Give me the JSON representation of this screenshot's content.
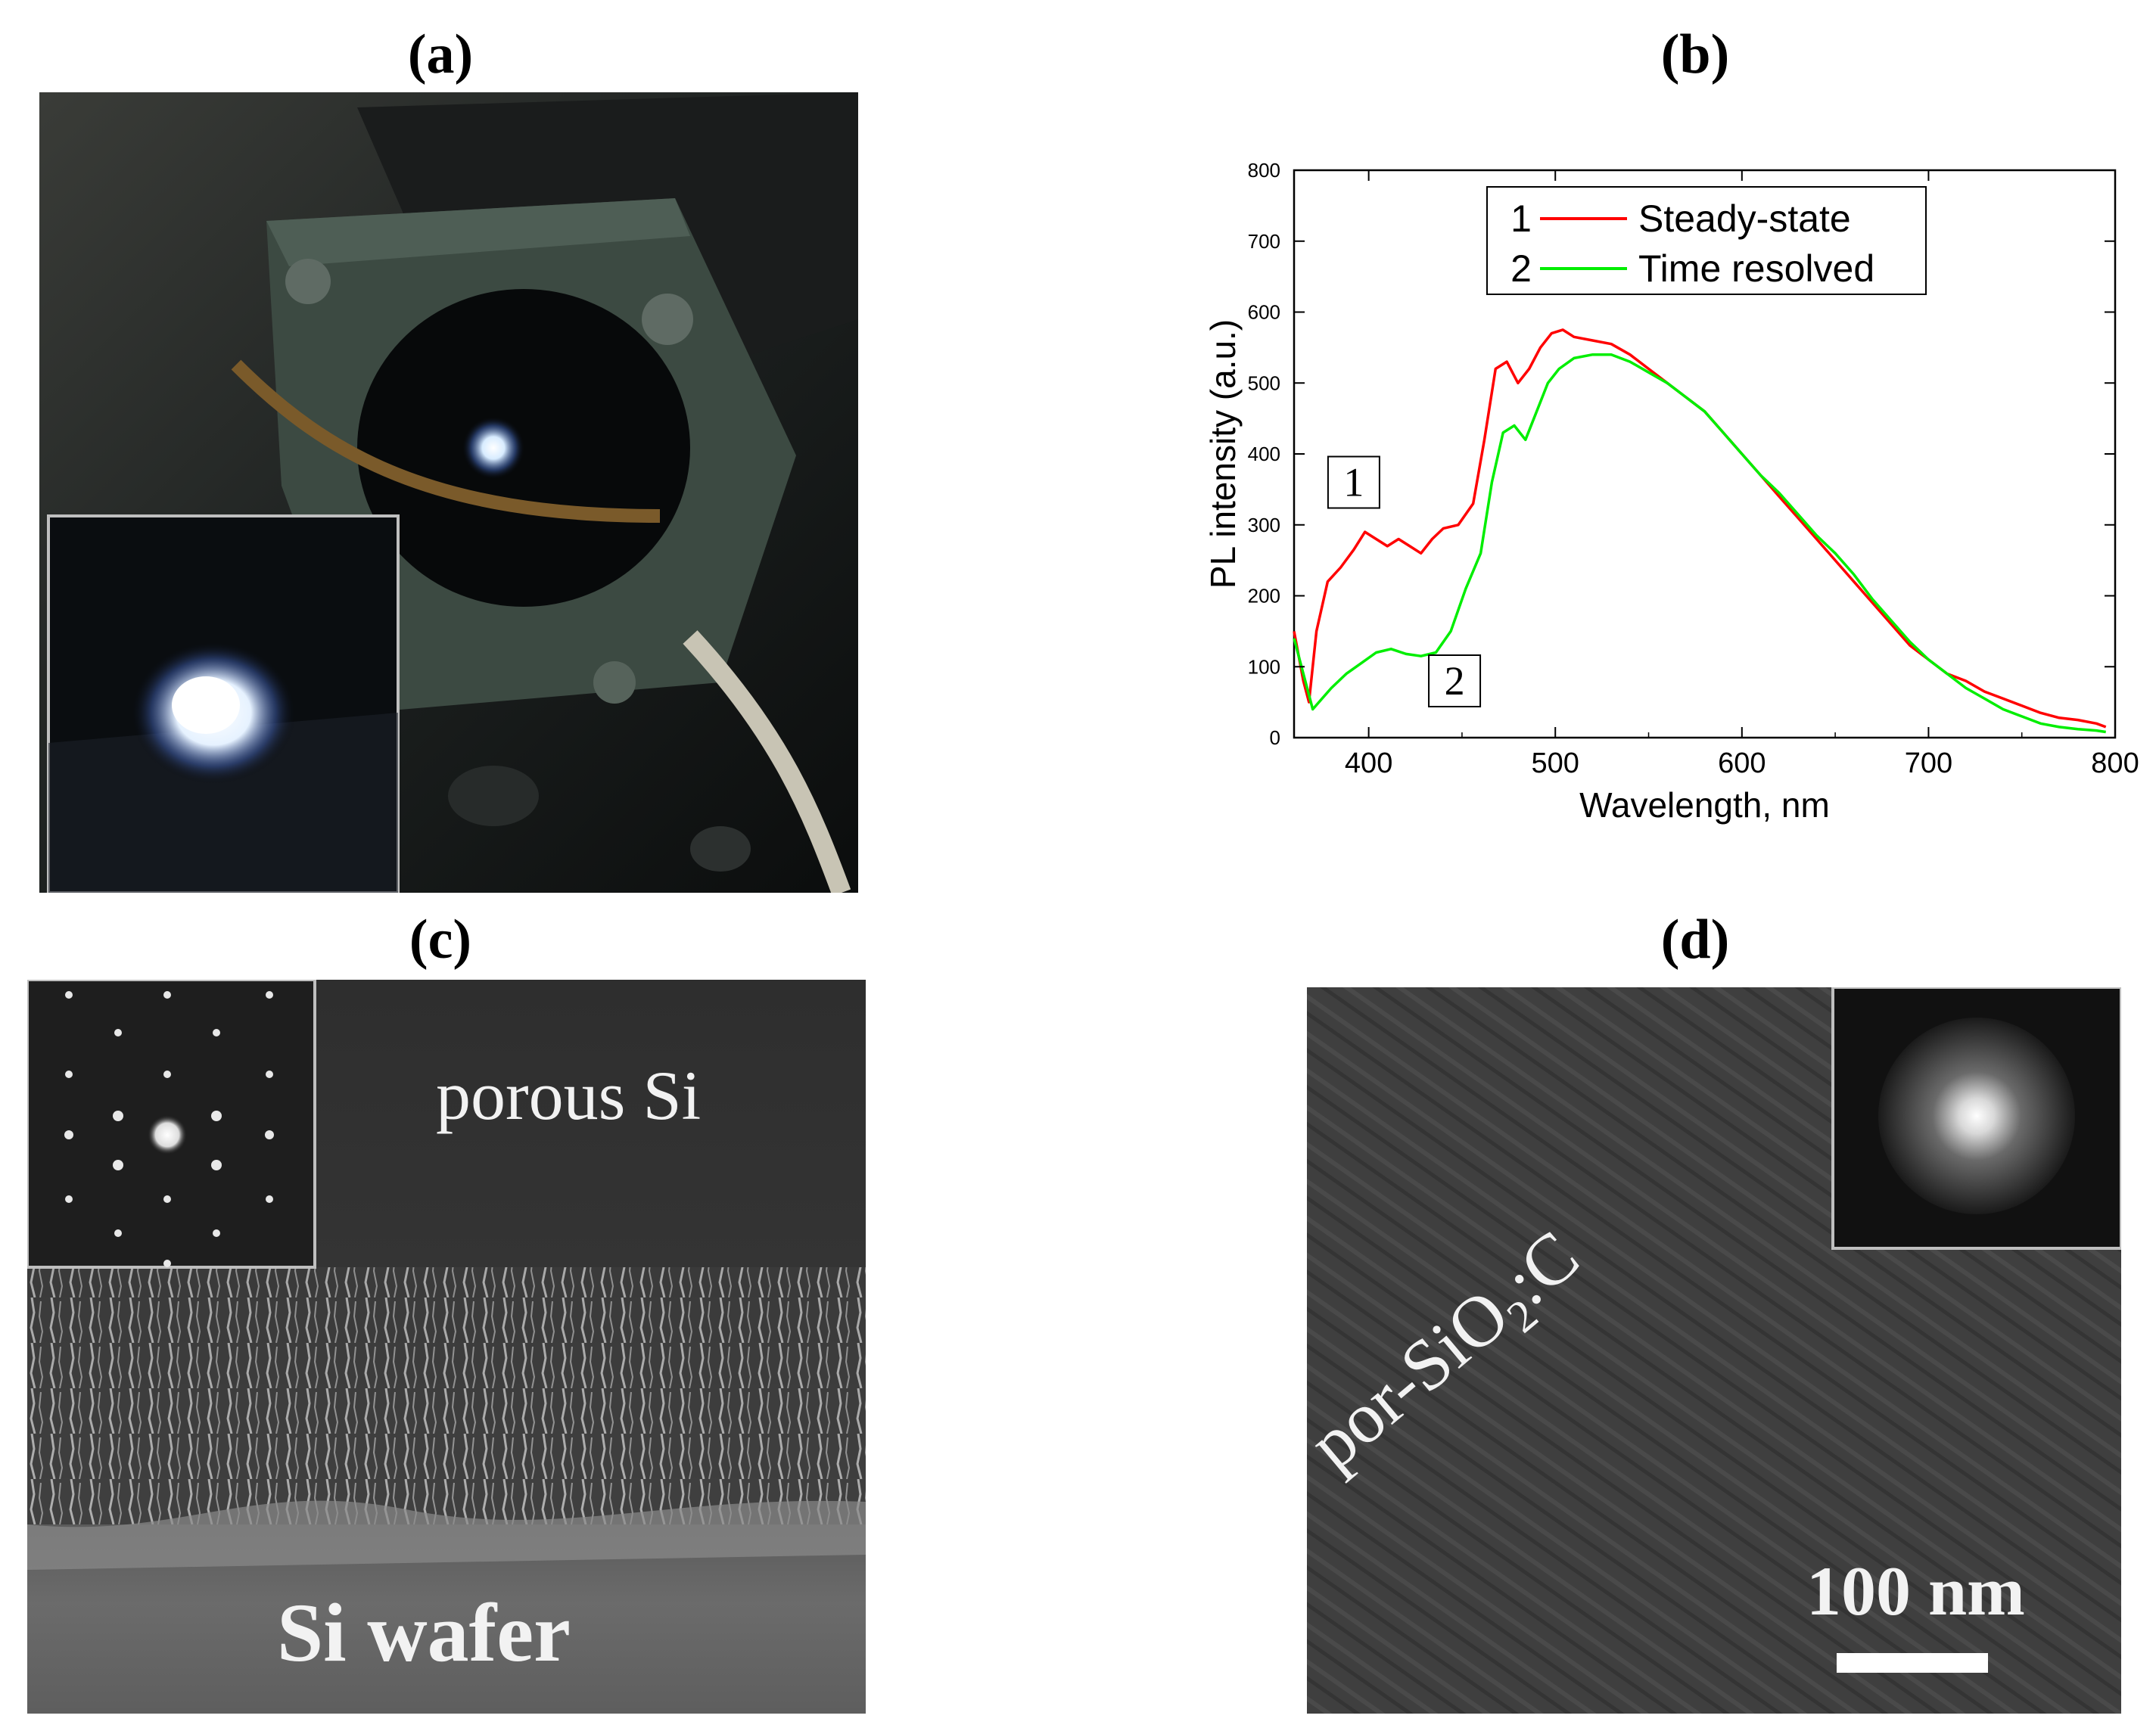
{
  "panels": {
    "a": {
      "label": "(a)"
    },
    "b": {
      "label": "(b)"
    },
    "c": {
      "label": "(c)",
      "text_top": "porous Si",
      "text_bottom": "Si wafer"
    },
    "d": {
      "label": "(d)",
      "text_rotated": "por-SiO",
      "text_rotated_sub": "2",
      "text_rotated_suffix": ":C",
      "scale_label": "100 nm"
    }
  },
  "chart_data": {
    "type": "line",
    "xlabel": "Wavelength, nm",
    "ylabel": "PL intensity (a.u.)",
    "xlim": [
      360,
      800
    ],
    "ylim": [
      0,
      800
    ],
    "xticks": [
      400,
      500,
      600,
      700,
      800
    ],
    "yticks": [
      0,
      100,
      200,
      300,
      400,
      500,
      600,
      700,
      800
    ],
    "legend_position": "top-center",
    "grid": false,
    "series": [
      {
        "name": "Steady-state",
        "legend_number": "1",
        "color": "#ff0000",
        "x": [
          360,
          365,
          368,
          372,
          378,
          385,
          392,
          398,
          404,
          410,
          416,
          422,
          428,
          434,
          440,
          448,
          456,
          462,
          468,
          474,
          480,
          486,
          492,
          498,
          504,
          510,
          520,
          530,
          540,
          550,
          560,
          570,
          580,
          590,
          600,
          610,
          620,
          630,
          640,
          650,
          660,
          670,
          680,
          690,
          700,
          710,
          720,
          730,
          740,
          750,
          760,
          770,
          780,
          790,
          795
        ],
        "y": [
          150,
          80,
          50,
          150,
          220,
          240,
          265,
          290,
          280,
          270,
          280,
          270,
          260,
          280,
          295,
          300,
          330,
          420,
          520,
          530,
          500,
          520,
          550,
          570,
          575,
          565,
          560,
          555,
          540,
          520,
          500,
          480,
          460,
          430,
          400,
          370,
          340,
          310,
          280,
          250,
          220,
          190,
          160,
          130,
          110,
          90,
          80,
          65,
          55,
          45,
          35,
          28,
          25,
          20,
          15
        ]
      },
      {
        "name": "Time resolved",
        "legend_number": "2",
        "color": "#00ee00",
        "x": [
          360,
          365,
          370,
          375,
          380,
          388,
          396,
          404,
          412,
          420,
          428,
          436,
          444,
          452,
          460,
          466,
          472,
          478,
          484,
          490,
          496,
          502,
          510,
          520,
          530,
          540,
          550,
          560,
          570,
          580,
          590,
          600,
          610,
          620,
          630,
          640,
          650,
          660,
          670,
          680,
          690,
          700,
          710,
          720,
          730,
          740,
          750,
          760,
          770,
          780,
          790,
          795
        ],
        "y": [
          140,
          90,
          40,
          55,
          70,
          90,
          105,
          120,
          125,
          118,
          115,
          120,
          150,
          210,
          260,
          360,
          430,
          440,
          420,
          460,
          500,
          520,
          535,
          540,
          540,
          530,
          515,
          500,
          480,
          460,
          430,
          400,
          370,
          345,
          315,
          285,
          260,
          230,
          195,
          165,
          135,
          110,
          90,
          70,
          55,
          40,
          30,
          20,
          15,
          12,
          10,
          8
        ]
      }
    ],
    "annotations": [
      {
        "text": "1",
        "x": 392,
        "y": 360
      },
      {
        "text": "2",
        "x": 446,
        "y": 80
      }
    ]
  }
}
